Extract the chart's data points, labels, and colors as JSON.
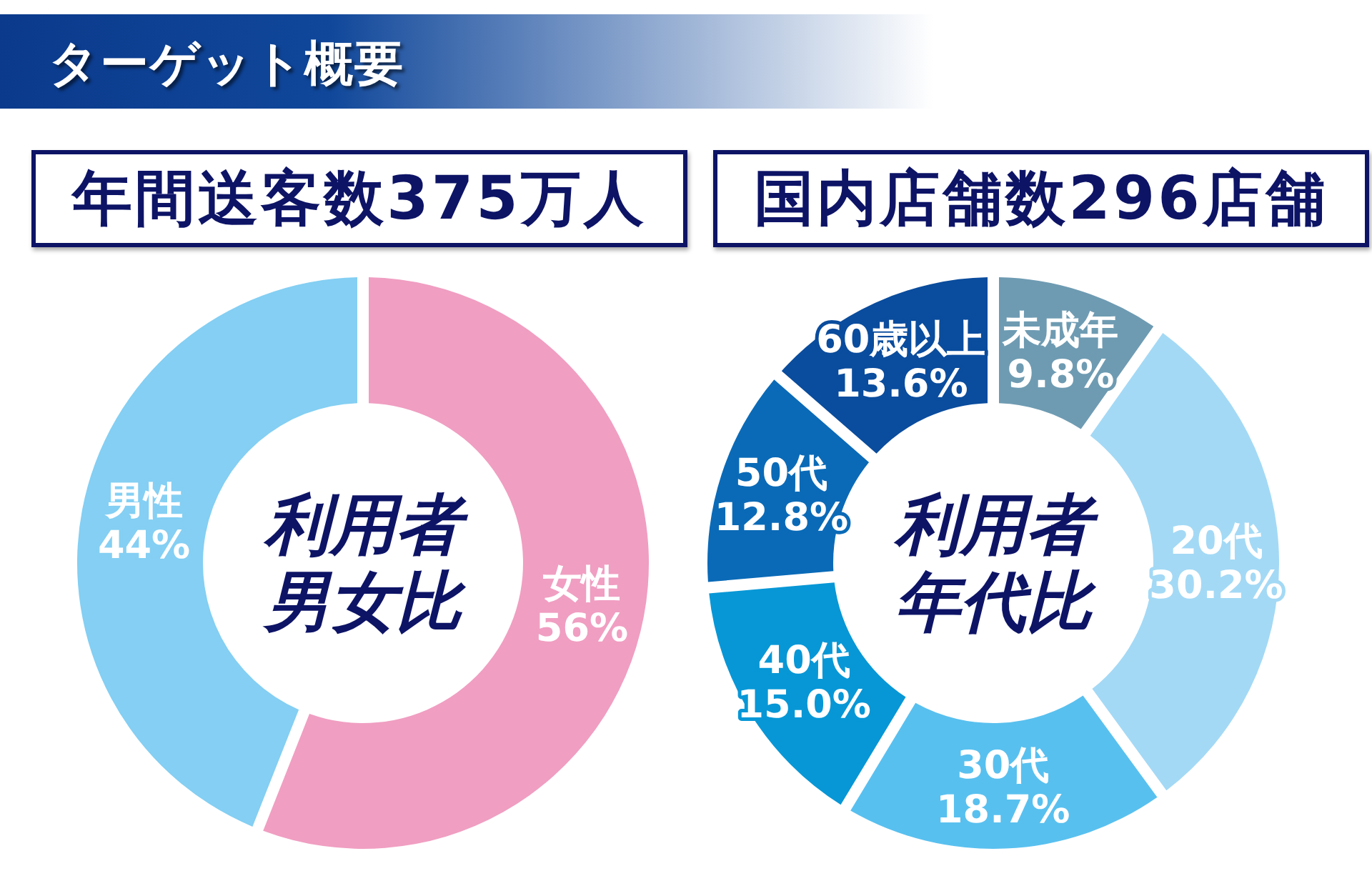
{
  "chart_data": [
    {
      "type": "other",
      "title": "ターゲット概要"
    },
    {
      "type": "donut",
      "title": "利用者男女比",
      "annotations": [
        "年間送客数375万人"
      ],
      "categories": [
        "女性",
        "男性"
      ],
      "values": [
        56,
        44
      ],
      "colors": [
        "#f09ec2",
        "#84cff3"
      ],
      "value_labels": [
        "56%",
        "44%"
      ]
    },
    {
      "type": "donut",
      "title": "利用者年代比",
      "annotations": [
        "国内店舗数296店舗"
      ],
      "categories": [
        "未成年",
        "20代",
        "30代",
        "40代",
        "50代",
        "60歳以上"
      ],
      "values": [
        9.8,
        30.2,
        18.7,
        15.0,
        12.8,
        13.6
      ],
      "colors": [
        "#6e9bb2",
        "#a3d9f5",
        "#58c0ef",
        "#0797d6",
        "#0a6ab7",
        "#0a4c9d"
      ],
      "value_labels": [
        "9.8%",
        "30.2%",
        "18.7%",
        "15.0%",
        "12.8%",
        "13.6%"
      ]
    }
  ]
}
